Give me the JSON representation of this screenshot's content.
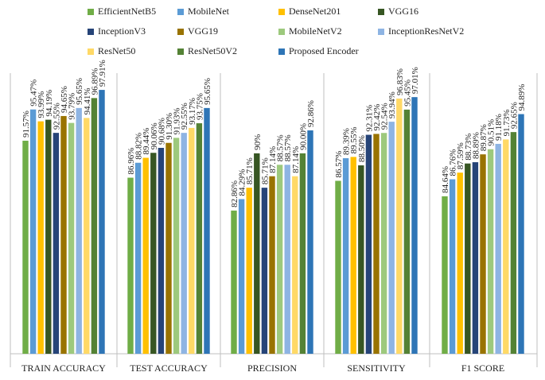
{
  "chart_data": {
    "type": "bar",
    "title": "",
    "xlabel": "",
    "ylabel": "",
    "ylim": [
      65,
      100
    ],
    "grid": false,
    "legend_position": "top",
    "categories": [
      "TRAIN ACCURACY",
      "TEST ACCURACY",
      "PRECISION",
      "SENSITIVITY",
      "F1 SCORE"
    ],
    "series": [
      {
        "name": "EfficientNetB5",
        "color": "#70ad47",
        "values": [
          91.57,
          86.96,
          82.86,
          86.57,
          84.64
        ],
        "labels": [
          "91.57%",
          "86.96%",
          "82.86%",
          "86.57%",
          "84.64%"
        ]
      },
      {
        "name": "MobileNet",
        "color": "#5b9bd5",
        "values": [
          95.47,
          88.82,
          84.29,
          89.39,
          86.76
        ],
        "labels": [
          "95.47%",
          "88.82%",
          "84.29%",
          "89.39%",
          "86.76%"
        ]
      },
      {
        "name": "DenseNet201",
        "color": "#ffc000",
        "values": [
          93.99,
          89.44,
          85.71,
          89.55,
          87.59
        ],
        "labels": [
          "93.99%",
          "89.44%",
          "85.71%",
          "89.55%",
          "87.59%"
        ]
      },
      {
        "name": "VGG16",
        "color": "#375623",
        "values": [
          94.19,
          90.06,
          90,
          88.5,
          88.73
        ],
        "labels": [
          "94.19%",
          "90.06%",
          "90%",
          "88.50%",
          "88.73%"
        ]
      },
      {
        "name": "InceptionV3",
        "color": "#264478",
        "values": [
          92.55,
          90.68,
          85.71,
          92.31,
          88.89
        ],
        "labels": [
          "92.55%",
          "90.68%",
          "85.71%",
          "92.31%",
          "88.89%"
        ]
      },
      {
        "name": "VGG19",
        "color": "#997300",
        "values": [
          94.65,
          91.3,
          87.14,
          92.42,
          89.87
        ],
        "labels": [
          "94.65%",
          "91.30%",
          "87.14%",
          "92.42%",
          "89.87%"
        ]
      },
      {
        "name": "MobileNetV2",
        "color": "#9dc97d",
        "values": [
          93.79,
          91.93,
          88.57,
          92.54,
          90.51
        ],
        "labels": [
          "93.79%",
          "91.93%",
          "88.57%",
          "92.54%",
          "90.51%"
        ]
      },
      {
        "name": "InceptionResNetV2",
        "color": "#8eb4e3",
        "values": [
          95.65,
          92.55,
          88.57,
          93.94,
          91.18
        ],
        "labels": [
          "95.65%",
          "92.55%",
          "88.57%",
          "93.94%",
          "91.18%"
        ]
      },
      {
        "name": "ResNet50",
        "color": "#ffd966",
        "values": [
          94.41,
          93.17,
          87.14,
          96.83,
          91.73
        ],
        "labels": [
          "94.41%",
          "93.17%",
          "87.14%",
          "96.83%",
          "91.73%"
        ]
      },
      {
        "name": "ResNet50V2",
        "color": "#548235",
        "values": [
          96.89,
          93.75,
          90.0,
          95.45,
          92.65
        ],
        "labels": [
          "96.89%",
          "93.75%",
          "90.00%",
          "95.45%",
          "92.65%"
        ]
      },
      {
        "name": "Proposed Encoder",
        "color": "#2e75b6",
        "values": [
          97.91,
          95.65,
          92.86,
          97.01,
          94.89
        ],
        "labels": [
          "97.91%",
          "95.65%",
          "92.86%",
          "97.01%",
          "94.89%"
        ]
      }
    ]
  }
}
